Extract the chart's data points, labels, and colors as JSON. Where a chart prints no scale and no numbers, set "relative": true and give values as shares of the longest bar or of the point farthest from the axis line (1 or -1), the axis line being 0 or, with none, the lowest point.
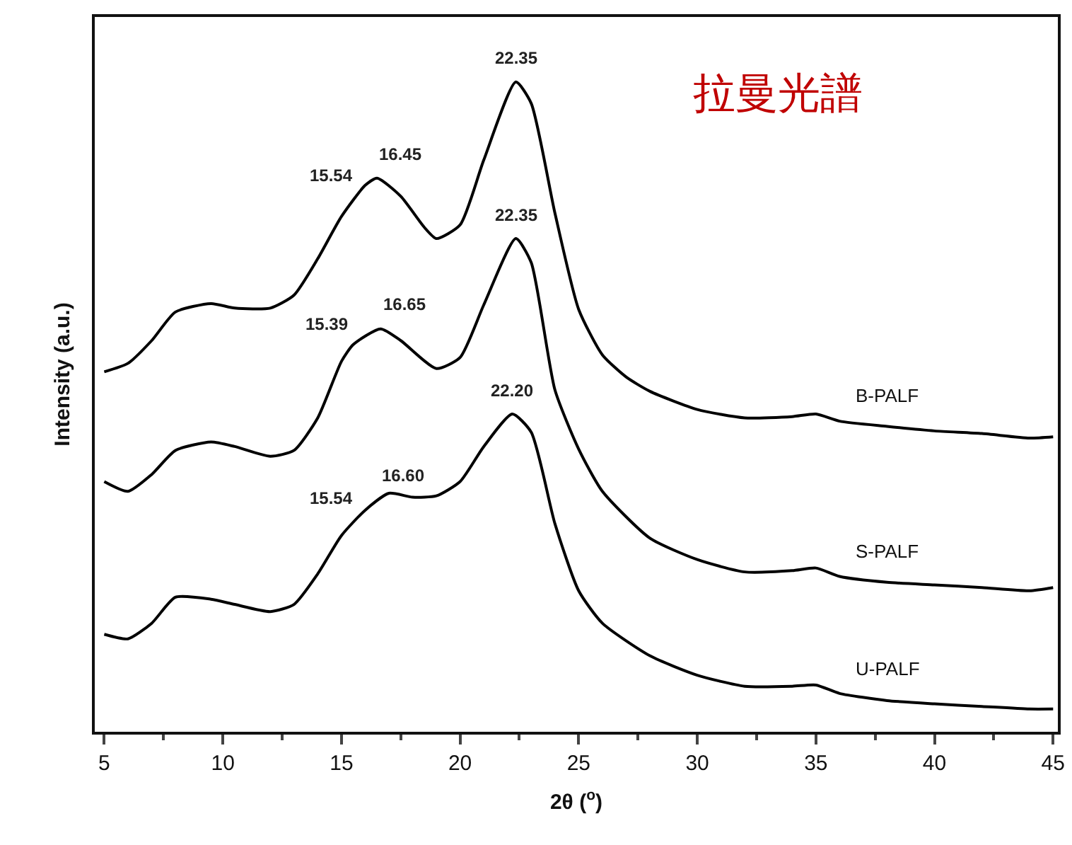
{
  "chart_data": {
    "type": "line",
    "relative": true,
    "xlabel": "2θ ($^{o}$)",
    "ylabel": "Intensity (a.u.)",
    "xlim": [
      4.6,
      45.2
    ],
    "xticks": [
      5,
      10,
      15,
      20,
      25,
      30,
      35,
      40,
      45
    ],
    "grid": false,
    "legend": false,
    "marker": "none",
    "line_style": "solid",
    "series": [
      {
        "name": "B-PALF",
        "color": "#000000",
        "x": [
          5,
          6,
          7,
          8,
          9.5,
          10.5,
          12,
          13,
          14,
          15,
          16,
          16.5,
          17.5,
          18.5,
          19,
          20,
          21,
          22.35,
          23,
          24,
          25,
          26,
          27,
          28,
          30,
          32,
          34,
          35,
          36,
          38,
          40,
          42,
          44,
          45
        ],
        "values": [
          0.554,
          0.567,
          0.602,
          0.646,
          0.659,
          0.652,
          0.652,
          0.672,
          0.728,
          0.793,
          0.841,
          0.852,
          0.824,
          0.776,
          0.759,
          0.78,
          0.88,
          1.0,
          0.967,
          0.798,
          0.65,
          0.58,
          0.546,
          0.524,
          0.496,
          0.483,
          0.485,
          0.489,
          0.478,
          0.47,
          0.463,
          0.459,
          0.452,
          0.454
        ]
      },
      {
        "name": "S-PALF",
        "color": "#000000",
        "x": [
          5,
          6,
          7,
          8,
          9.5,
          10.5,
          12,
          13,
          14,
          15,
          15.5,
          16.65,
          17.5,
          19,
          20,
          21,
          22.35,
          23,
          24,
          25,
          26,
          28,
          30,
          32,
          34,
          35,
          36,
          38,
          40,
          42,
          44,
          45
        ],
        "values": [
          0.385,
          0.37,
          0.396,
          0.433,
          0.446,
          0.439,
          0.424,
          0.433,
          0.483,
          0.57,
          0.596,
          0.62,
          0.602,
          0.559,
          0.576,
          0.657,
          0.759,
          0.722,
          0.526,
          0.435,
          0.37,
          0.298,
          0.265,
          0.246,
          0.248,
          0.252,
          0.239,
          0.23,
          0.226,
          0.222,
          0.217,
          0.222
        ]
      },
      {
        "name": "U-PALF",
        "color": "#000000",
        "x": [
          5,
          6,
          7,
          8,
          9.5,
          10.5,
          12,
          13,
          14,
          15,
          16,
          17,
          18,
          19,
          20,
          21,
          22.2,
          23,
          24,
          25,
          26,
          28,
          30,
          32,
          34,
          35,
          36,
          38,
          40,
          42,
          44,
          45
        ],
        "values": [
          0.15,
          0.143,
          0.167,
          0.207,
          0.204,
          0.196,
          0.185,
          0.196,
          0.243,
          0.302,
          0.341,
          0.367,
          0.361,
          0.363,
          0.385,
          0.439,
          0.489,
          0.461,
          0.32,
          0.217,
          0.167,
          0.117,
          0.087,
          0.07,
          0.07,
          0.072,
          0.059,
          0.048,
          0.043,
          0.039,
          0.035,
          0.035
        ]
      }
    ],
    "annotations": [
      {
        "text": "22.35",
        "x": 22.35,
        "y": 1.0
      },
      {
        "text": "15.54",
        "x": 15.54,
        "y": 0.819
      },
      {
        "text": "16.45",
        "x": 16.45,
        "y": 0.851
      },
      {
        "text": "22.35",
        "x": 22.35,
        "y": 0.759
      },
      {
        "text": "15.39",
        "x": 15.39,
        "y": 0.59
      },
      {
        "text": "16.65",
        "x": 16.65,
        "y": 0.62
      },
      {
        "text": "22.20",
        "x": 22.2,
        "y": 0.489
      },
      {
        "text": "15.54",
        "x": 15.54,
        "y": 0.323
      },
      {
        "text": "16.60",
        "x": 16.6,
        "y": 0.357
      },
      "拉曼光譜"
    ]
  }
}
